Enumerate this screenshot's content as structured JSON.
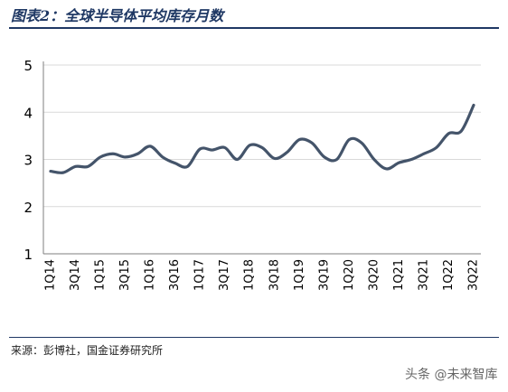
{
  "header": {
    "title": "图表2：全球半导体平均库存月数"
  },
  "footer": {
    "source": "来源：彭博社，国金证券研究所",
    "watermark": "头条 @未来智库"
  },
  "chart_data": {
    "type": "line",
    "title": "图表2：全球半导体平均库存月数",
    "xlabel": "",
    "ylabel": "",
    "ylim": [
      1,
      5
    ],
    "yticks": [
      1,
      2,
      3,
      4,
      5
    ],
    "grid": "horizontal",
    "legend": "none",
    "line_color": "#44546a",
    "x": [
      "1Q14",
      "2Q14",
      "3Q14",
      "4Q14",
      "1Q15",
      "2Q15",
      "3Q15",
      "4Q15",
      "1Q16",
      "2Q16",
      "3Q16",
      "4Q16",
      "1Q17",
      "2Q17",
      "3Q17",
      "4Q17",
      "1Q18",
      "2Q18",
      "3Q18",
      "4Q18",
      "1Q19",
      "2Q19",
      "3Q19",
      "4Q19",
      "1Q20",
      "2Q20",
      "3Q20",
      "4Q20",
      "1Q21",
      "2Q21",
      "3Q21",
      "4Q21",
      "1Q22",
      "2Q22",
      "3Q22"
    ],
    "xticklabels": [
      "1Q14",
      "3Q14",
      "1Q15",
      "3Q15",
      "1Q16",
      "3Q16",
      "1Q17",
      "3Q17",
      "1Q18",
      "3Q18",
      "1Q19",
      "3Q19",
      "1Q20",
      "3Q20",
      "1Q21",
      "3Q21",
      "1Q22",
      "3Q22"
    ],
    "series": [
      {
        "values": [
          2.75,
          2.72,
          2.85,
          2.85,
          3.05,
          3.12,
          3.05,
          3.12,
          3.28,
          3.05,
          2.92,
          2.85,
          3.22,
          3.2,
          3.25,
          3.0,
          3.3,
          3.25,
          3.02,
          3.15,
          3.42,
          3.35,
          3.05,
          3.0,
          3.42,
          3.35,
          3.0,
          2.8,
          2.93,
          3.0,
          3.12,
          3.25,
          3.55,
          3.6,
          4.15
        ]
      }
    ]
  }
}
